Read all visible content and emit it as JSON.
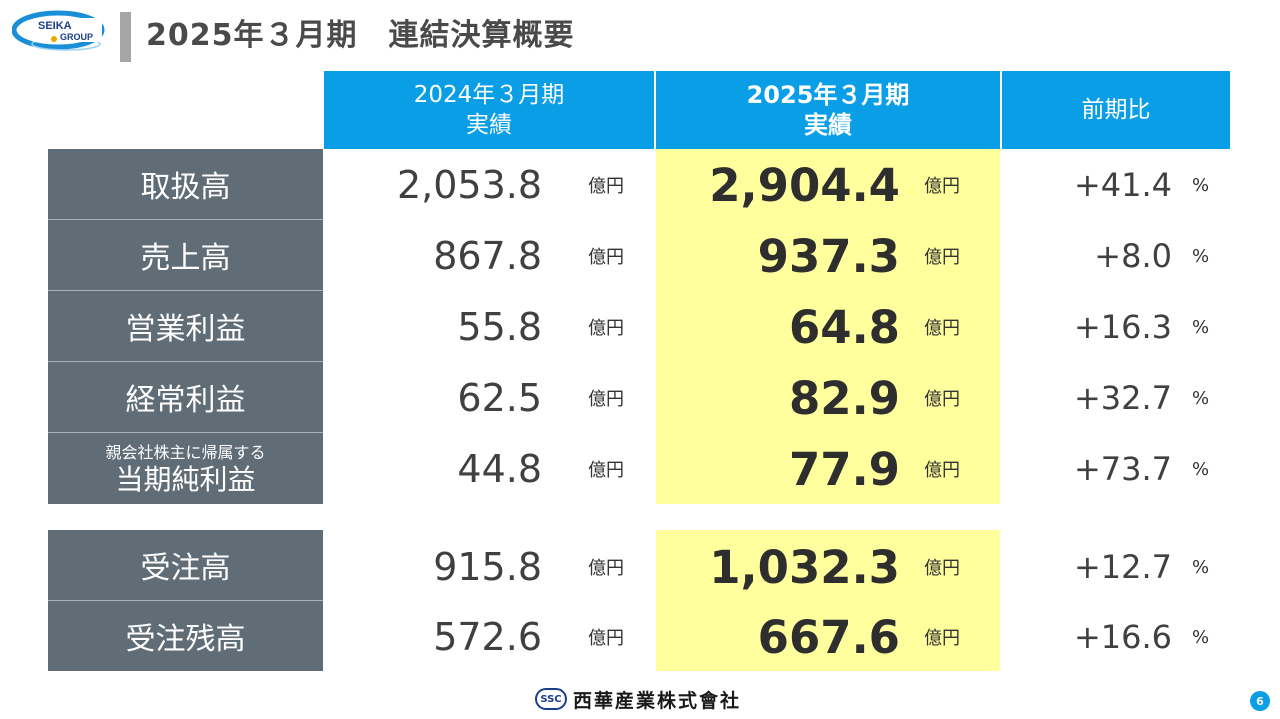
{
  "logo": {
    "line1": "SEIKA",
    "line2": "GROUP"
  },
  "title": "2025年３月期　連結決算概要",
  "headers": {
    "prev": [
      "2024年３月期",
      "実績"
    ],
    "curr": [
      "2025年３月期",
      "実績"
    ],
    "yoy": "前期比"
  },
  "units": {
    "amount": "億円",
    "percent": "%"
  },
  "rows": [
    {
      "label": "取扱高",
      "prev": "2,053.8",
      "curr": "2,904.4",
      "yoy": "+41.4"
    },
    {
      "label": "売上高",
      "prev": "867.8",
      "curr": "937.3",
      "yoy": "+8.0"
    },
    {
      "label": "営業利益",
      "prev": "55.8",
      "curr": "64.8",
      "yoy": "+16.3"
    },
    {
      "label": "経常利益",
      "prev": "62.5",
      "curr": "82.9",
      "yoy": "+32.7"
    },
    {
      "label_small": "親会社株主に帰属する",
      "label": "当期純利益",
      "prev": "44.8",
      "curr": "77.9",
      "yoy": "+73.7"
    },
    {
      "label": "受注高",
      "prev": "915.8",
      "curr": "1,032.3",
      "yoy": "+12.7"
    },
    {
      "label": "受注残高",
      "prev": "572.6",
      "curr": "667.6",
      "yoy": "+16.6"
    }
  ],
  "footer": {
    "badge": "SSC",
    "company": "西華産業株式會社"
  },
  "page_number": "6",
  "colors": {
    "header_blue": "#0a9ee6",
    "label_gray": "#606d77",
    "highlight_yellow": "#ffff9e"
  }
}
